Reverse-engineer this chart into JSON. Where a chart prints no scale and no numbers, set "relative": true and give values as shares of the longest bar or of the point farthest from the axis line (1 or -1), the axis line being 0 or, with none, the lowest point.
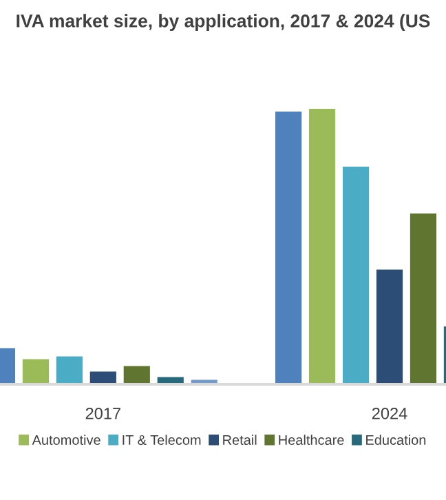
{
  "chart_data": {
    "type": "bar",
    "title": "IVA market size, by application, 2017 & 2024 (US",
    "categories": [
      "2017",
      "2024"
    ],
    "relative": true,
    "legend": "bottom",
    "grid": false,
    "series": [
      {
        "color": "#4f81bd",
        "values": [
          0.131,
          0.99
        ]
      },
      {
        "name": "Automotive",
        "color": "#9bbb59",
        "values": [
          0.091,
          1
        ]
      },
      {
        "name": "IT & Telecom",
        "color": "#4bacc6",
        "values": [
          0.101,
          0.79
        ]
      },
      {
        "name": "Retail",
        "color": "#2c4d75",
        "values": [
          0.046,
          0.416
        ]
      },
      {
        "name": "Healthcare",
        "color": "#5f7530",
        "values": [
          0.066,
          0.62
        ]
      },
      {
        "name": "Education",
        "color": "#276a7c",
        "values": [
          0.026,
          0.21
        ]
      },
      {
        "color": "#729aca",
        "values": [
          0.016,
          null
        ]
      }
    ]
  }
}
